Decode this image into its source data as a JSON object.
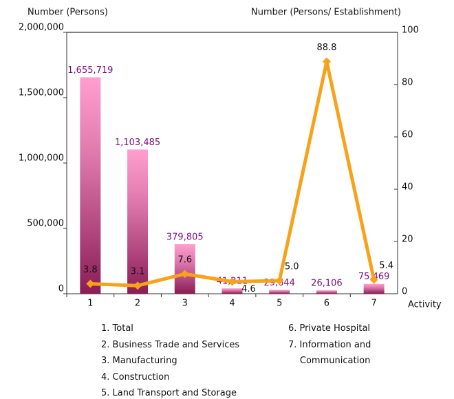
{
  "chart_data": {
    "type": "bar",
    "y_label": "Number (Persons)",
    "y2_label": "Number (Persons/ Establishment)",
    "x_label": "Activity",
    "categories": [
      "1",
      "2",
      "3",
      "4",
      "5",
      "6",
      "7"
    ],
    "series": [
      {
        "type": "bar",
        "color": "#ff9fcf",
        "values": [
          1655719,
          1103485,
          379805,
          41211,
          29644,
          26106,
          75469
        ],
        "value_labels": [
          "1,655,719",
          "1,103,485",
          "379,805",
          "41,211",
          "29,644",
          "26,106",
          "75,469"
        ]
      },
      {
        "type": "line",
        "axis": "y2",
        "color": "#f7a21b",
        "values": [
          3.8,
          3.1,
          7.6,
          4.6,
          5.0,
          88.8,
          5.4
        ],
        "value_labels": [
          "3.8",
          "3.1",
          "7.6",
          "4.6",
          "5.0",
          "88.8",
          "5.4"
        ]
      }
    ],
    "ylim": [
      0,
      2000000
    ],
    "yticks": [
      0,
      {
        "value": 500000,
        "label": "500,000"
      },
      {
        "value": 1000000,
        "label": "1,000,000"
      },
      {
        "value": 1500000,
        "label": "1,500,000"
      },
      {
        "value": 2000000,
        "label": "2,000,000"
      }
    ],
    "y2lim": [
      0,
      100
    ],
    "y2ticks": [
      0,
      20,
      40,
      60,
      80,
      100
    ],
    "notes_left": [
      "1. Total",
      "2. Business Trade and Services",
      "3. Manufacturing",
      "4. Construction",
      "5. Land Transport and Storage"
    ],
    "notes_right": [
      "6. Private Hospital",
      "7. Information and Communication"
    ]
  }
}
